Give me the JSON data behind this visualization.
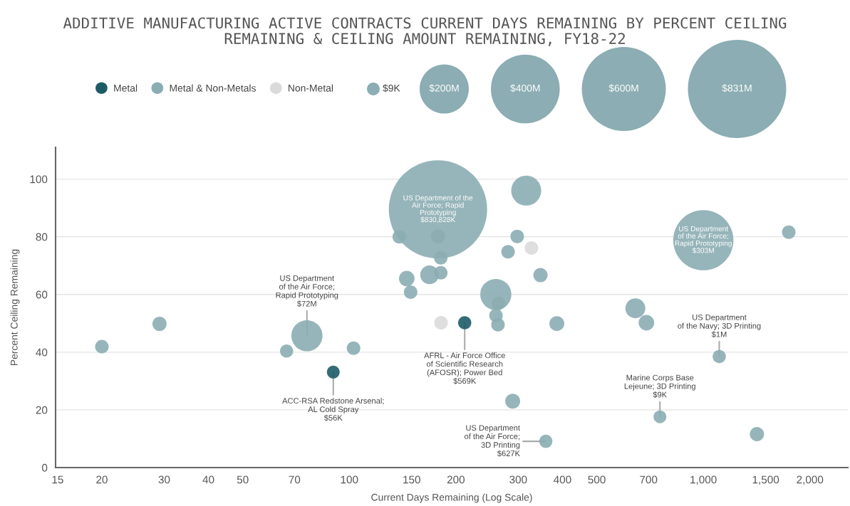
{
  "chart_data": {
    "type": "bubble",
    "title": "ADDITIVE MANUFACTURING ACTIVE CONTRACTS CURRENT DAYS REMAINING BY PERCENT CEILING\nREMAINING & CEILING AMOUNT REMAINING, FY18-22",
    "xlabel": "Current Days Remaining (Log Scale)",
    "ylabel": "Percent Ceiling Remaining",
    "log": "x",
    "xlim": [
      14.8,
      2560
    ],
    "ylim": [
      0,
      111
    ],
    "xticks": [
      15,
      20,
      30,
      40,
      50,
      70,
      100,
      150,
      200,
      300,
      400,
      500,
      700,
      {
        "value": 1000,
        "label": "1,000"
      },
      {
        "value": 1500,
        "label": "1,500"
      },
      {
        "value": 2000,
        "label": "2,000"
      }
    ],
    "yticks": [
      0,
      20,
      40,
      60,
      80,
      100
    ],
    "grid": "y",
    "legend": "top",
    "size_legend": [
      {
        "value": 0.017,
        "label": "$9K"
      },
      {
        "value": 0.25,
        "label": "$200M"
      },
      {
        "value": 0.49,
        "label": "$400M"
      },
      {
        "value": 0.73,
        "label": "$600M"
      },
      {
        "value": 1,
        "label": "$831M"
      }
    ],
    "series": [
      {
        "name": "Metal",
        "color": "#1d5c67",
        "x": [
          90.1,
          211.8
        ],
        "values": [
          33.1,
          50.2
        ],
        "sizes": [
          0.017,
          0.018
        ]
      },
      {
        "name": "Metal & Non-Metals",
        "color": "#8badb3",
        "x": [
          20,
          29.1,
          66.5,
          75.9,
          102.8,
          138.4,
          145.3,
          149,
          178,
          178,
          181.3,
          168.5,
          181.3,
          259.3,
          263.6,
          259.6,
          263,
          316,
          298,
          280.8,
          346.7,
          385.6,
          289.4,
          359,
          642.7,
          690.6,
          1000,
          1743,
          1109,
          754,
          1417
        ],
        "values": [
          41.9,
          49.8,
          40.4,
          45.7,
          41.4,
          80.0,
          65.5,
          60.8,
          89.5,
          80.1,
          72.7,
          66.8,
          67.5,
          60.0,
          56.9,
          52.7,
          49.5,
          96.0,
          80.1,
          74.8,
          66.7,
          49.9,
          23.0,
          9.1,
          55.2,
          50.2,
          78.8,
          81.6,
          38.5,
          17.6,
          11.6
        ],
        "sizes": [
          0.019,
          0.021,
          0.018,
          0.1,
          0.019,
          0.019,
          0.025,
          0.019,
          1,
          0.021,
          0.019,
          0.036,
          0.019,
          0.1,
          0.019,
          0.019,
          0.019,
          0.093,
          0.019,
          0.019,
          0.021,
          0.023,
          0.023,
          0.018,
          0.041,
          0.025,
          0.375,
          0.019,
          0.018,
          0.017,
          0.021
        ]
      },
      {
        "name": "Non-Metal",
        "color": "#dadada",
        "x": [
          181.6,
          327
        ],
        "values": [
          50.2,
          76.1
        ],
        "sizes": [
          0.019,
          0.019
        ]
      }
    ],
    "annotations": [
      {
        "text": "US Department of the\nAir Force; Rapid\nPrototyping\n$830,828K",
        "x": 178,
        "y": 89.5
      },
      {
        "text": "US Department\nof the Air Force;\nRapid Prototyping\n$303M",
        "x": 1000,
        "y": 78.8
      },
      {
        "text": "US Department\nof the Air Force;\nRapid Prototyping\n$72M",
        "x": 75.9,
        "y": 45.7
      },
      {
        "text": "ACC-RSA Redstone Arsenal;\nAL Cold Spray\n$56K",
        "x": 90.1,
        "y": 33.1
      },
      {
        "text": "AFRL - Air Force Office\nof Scientific Research\n(AFOSR); Power Bed\n$569K",
        "x": 211.8,
        "y": 50.2
      },
      {
        "text": "US Department\nof the Air Force;\n3D Printing\n$627K",
        "x": 359,
        "y": 9.1
      },
      {
        "text": "Marine Corps Base\nLejeune; 3D Printing\n$9K",
        "x": 754,
        "y": 17.6
      },
      {
        "text": "US Department\nof the Navy; 3D Printing\n$1M",
        "x": 1109,
        "y": 38.5
      }
    ]
  }
}
